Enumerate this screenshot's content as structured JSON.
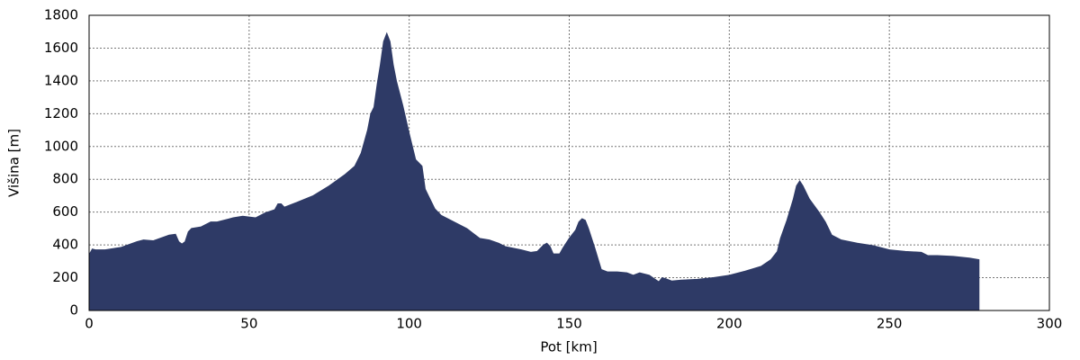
{
  "chart_data": {
    "type": "area",
    "xlabel": "Pot [km]",
    "ylabel": "Višina [m]",
    "x": [
      0,
      1,
      2,
      5,
      10,
      15,
      17,
      20,
      25,
      27,
      28,
      29,
      30,
      31,
      32,
      35,
      38,
      40,
      45,
      48,
      50,
      52,
      55,
      58,
      59,
      60,
      61,
      65,
      70,
      75,
      80,
      83,
      85,
      87,
      88,
      89,
      90,
      91,
      92,
      93,
      94,
      95,
      96,
      98,
      100,
      102,
      103,
      104,
      105,
      106,
      108,
      110,
      115,
      118,
      120,
      122,
      125,
      128,
      130,
      135,
      138,
      140,
      142,
      143,
      144,
      145,
      147,
      148,
      150,
      152,
      153,
      154,
      155,
      156,
      158,
      160,
      162,
      165,
      168,
      170,
      172,
      175,
      178,
      179,
      180,
      182,
      185,
      190,
      195,
      200,
      205,
      210,
      213,
      215,
      216,
      218,
      220,
      221,
      222,
      223,
      225,
      228,
      230,
      232,
      235,
      240,
      245,
      250,
      255,
      260,
      262,
      265,
      270,
      275,
      278
    ],
    "series": [
      {
        "name": null,
        "color": "#2e3a66",
        "values": [
          340,
          375,
          370,
          370,
          385,
          420,
          430,
          425,
          460,
          465,
          420,
          405,
          420,
          480,
          500,
          510,
          540,
          540,
          565,
          575,
          570,
          565,
          595,
          615,
          650,
          650,
          630,
          660,
          700,
          760,
          830,
          880,
          960,
          1100,
          1200,
          1240,
          1380,
          1500,
          1640,
          1690,
          1640,
          1500,
          1400,
          1250,
          1080,
          920,
          900,
          880,
          740,
          700,
          620,
          580,
          530,
          500,
          470,
          440,
          430,
          410,
          390,
          370,
          355,
          360,
          400,
          410,
          390,
          345,
          345,
          380,
          440,
          490,
          540,
          560,
          550,
          500,
          380,
          250,
          235,
          235,
          230,
          215,
          230,
          215,
          175,
          200,
          195,
          180,
          185,
          190,
          200,
          215,
          240,
          270,
          310,
          360,
          440,
          550,
          680,
          760,
          790,
          760,
          680,
          600,
          540,
          460,
          430,
          410,
          395,
          370,
          360,
          355,
          335,
          335,
          330,
          320,
          310
        ]
      }
    ],
    "xlim": [
      0,
      300
    ],
    "xticks": [
      0,
      50,
      100,
      150,
      200,
      250,
      300
    ],
    "ylim": [
      0,
      1800
    ],
    "yticks": [
      0,
      200,
      400,
      600,
      800,
      1000,
      1200,
      1400,
      1600,
      1800
    ],
    "grid": true
  }
}
